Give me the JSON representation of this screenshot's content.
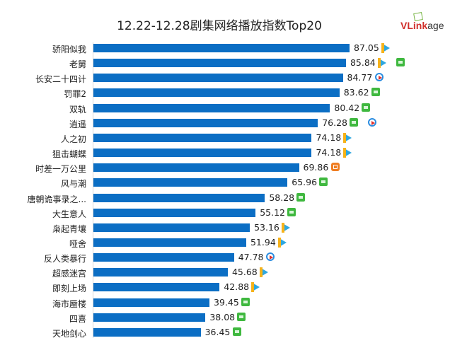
{
  "chart_data": {
    "type": "bar",
    "orientation": "horizontal",
    "title": "12.22-12.28剧集网络播放指数Top20",
    "bar_color": "#0b6ec4",
    "xlim": [
      0,
      90
    ],
    "grid": false,
    "categories": [
      "骄阳似我",
      "老舅",
      "长安二十四计",
      "罚罪2",
      "双轨",
      "逍遥",
      "人之初",
      "狙击蝴蝶",
      "时差一万公里",
      "风与潮",
      "唐朝诡事录之...",
      "大生意人",
      "枭起青壤",
      "哑舍",
      "反人类暴行",
      "超感迷宫",
      "即刻上场",
      "海市蜃楼",
      "四喜",
      "天地剑心"
    ],
    "values": [
      87.05,
      85.84,
      84.77,
      83.62,
      80.42,
      76.28,
      74.18,
      74.18,
      69.86,
      65.96,
      58.28,
      55.12,
      53.16,
      51.94,
      47.78,
      45.68,
      42.88,
      39.45,
      38.08,
      36.45
    ],
    "value_labels": [
      "87.05",
      "85.84",
      "84.77",
      "83.62",
      "80.42",
      "76.28",
      "74.18",
      "74.18",
      "69.86",
      "65.96",
      "58.28",
      "55.12",
      "53.16",
      "51.94",
      "47.78",
      "45.68",
      "42.88",
      "39.45",
      "38.08",
      "36.45"
    ],
    "platform_icons": [
      [
        "tencent-video"
      ],
      [
        "tencent-video",
        "iqiyi"
      ],
      [
        "youku"
      ],
      [
        "iqiyi"
      ],
      [
        "iqiyi"
      ],
      [
        "iqiyi",
        "youku"
      ],
      [
        "tencent-video"
      ],
      [
        "tencent-video"
      ],
      [
        "mango-tv"
      ],
      [
        "iqiyi"
      ],
      [
        "iqiyi"
      ],
      [
        "iqiyi"
      ],
      [
        "tencent-video"
      ],
      [
        "tencent-video"
      ],
      [
        "youku"
      ],
      [
        "tencent-video"
      ],
      [
        "tencent-video"
      ],
      [
        "iqiyi"
      ],
      [
        "iqiyi"
      ],
      [
        "iqiyi"
      ]
    ]
  },
  "brand": {
    "logo_text": "VLinkage"
  }
}
